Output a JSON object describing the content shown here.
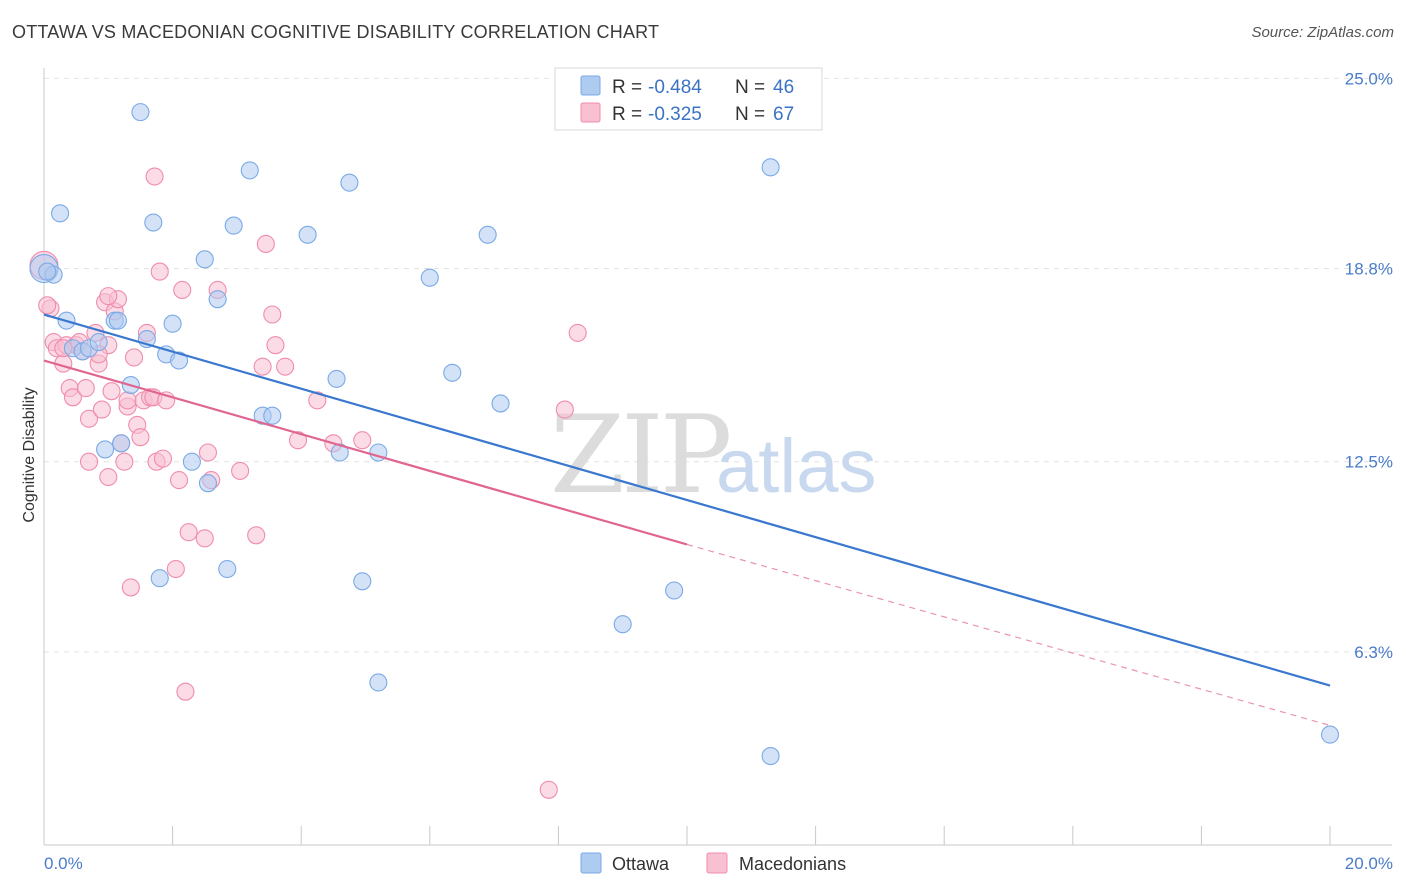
{
  "title": "OTTAWA VS MACEDONIAN COGNITIVE DISABILITY CORRELATION CHART",
  "source": "Source: ZipAtlas.com",
  "watermark": {
    "zip": "ZIP",
    "atlas": "atlas"
  },
  "legend": {
    "r_label": "R =",
    "n_label": "N =",
    "entries": [
      {
        "name": "Ottawa",
        "r": "-0.484",
        "n": "46",
        "color": "#7aaae6",
        "fill": "#aecbf0"
      },
      {
        "name": "Macedonians",
        "r": "-0.325",
        "n": "67",
        "color": "#f08cac",
        "fill": "#f8c0d1"
      }
    ]
  },
  "chart_data": {
    "type": "scatter",
    "title": "OTTAWA VS MACEDONIAN COGNITIVE DISABILITY CORRELATION CHART",
    "xlabel": "",
    "ylabel": "Cognitive Disability",
    "xlim": [
      0,
      20
    ],
    "ylim": [
      0,
      25.6
    ],
    "x_tick_labels": [
      "0.0%",
      "20.0%"
    ],
    "y_ticks": [
      {
        "value": 6.3,
        "label": "6.3%"
      },
      {
        "value": 12.5,
        "label": "12.5%"
      },
      {
        "value": 18.8,
        "label": "18.8%"
      },
      {
        "value": 25.0,
        "label": "25.0%"
      }
    ],
    "grid": true,
    "series": [
      {
        "name": "Ottawa",
        "color": "#3a78cf",
        "trend": {
          "x0": 0.0,
          "y0": 17.3,
          "x1": 20.0,
          "y1": 5.2
        },
        "points": [
          [
            0.0,
            18.8
          ],
          [
            0.15,
            18.6
          ],
          [
            0.25,
            20.6
          ],
          [
            0.35,
            17.1
          ],
          [
            0.45,
            16.2
          ],
          [
            0.6,
            16.1
          ],
          [
            0.7,
            16.2
          ],
          [
            0.85,
            16.4
          ],
          [
            0.95,
            12.9
          ],
          [
            1.1,
            17.1
          ],
          [
            1.2,
            13.1
          ],
          [
            1.35,
            15.0
          ],
          [
            1.5,
            23.9
          ],
          [
            1.6,
            16.5
          ],
          [
            1.7,
            20.3
          ],
          [
            1.8,
            8.7
          ],
          [
            1.9,
            16.0
          ],
          [
            2.0,
            17.0
          ],
          [
            2.1,
            15.8
          ],
          [
            2.3,
            12.5
          ],
          [
            2.5,
            19.1
          ],
          [
            2.55,
            11.8
          ],
          [
            2.7,
            17.8
          ],
          [
            2.85,
            9.0
          ],
          [
            2.95,
            20.2
          ],
          [
            3.2,
            22.0
          ],
          [
            3.4,
            14.0
          ],
          [
            3.55,
            14.0
          ],
          [
            4.1,
            19.9
          ],
          [
            4.55,
            15.2
          ],
          [
            4.6,
            12.8
          ],
          [
            4.75,
            21.6
          ],
          [
            4.95,
            8.6
          ],
          [
            5.2,
            5.3
          ],
          [
            5.2,
            12.8
          ],
          [
            6.0,
            18.5
          ],
          [
            6.35,
            15.4
          ],
          [
            6.9,
            19.9
          ],
          [
            7.1,
            14.4
          ],
          [
            9.0,
            7.2
          ],
          [
            9.8,
            8.3
          ],
          [
            11.3,
            2.9
          ],
          [
            11.3,
            22.1
          ],
          [
            20.0,
            3.6
          ],
          [
            0.05,
            18.7
          ],
          [
            1.15,
            17.1
          ]
        ]
      },
      {
        "name": "Macedonians",
        "color": "#e0668f",
        "trend": {
          "x0": 0.0,
          "y0": 15.8,
          "x1": 10.0,
          "y1": 9.8
        },
        "trend_dashed": {
          "x0": 10.0,
          "y0": 9.8,
          "x1": 20.0,
          "y1": 3.9
        },
        "points": [
          [
            0.0,
            18.9
          ],
          [
            0.1,
            17.5
          ],
          [
            0.15,
            16.4
          ],
          [
            0.2,
            16.2
          ],
          [
            0.3,
            15.7
          ],
          [
            0.35,
            16.3
          ],
          [
            0.4,
            14.9
          ],
          [
            0.45,
            14.6
          ],
          [
            0.5,
            16.3
          ],
          [
            0.55,
            16.4
          ],
          [
            0.6,
            16.1
          ],
          [
            0.65,
            14.9
          ],
          [
            0.7,
            12.5
          ],
          [
            0.7,
            13.9
          ],
          [
            0.8,
            16.7
          ],
          [
            0.85,
            15.7
          ],
          [
            0.9,
            14.2
          ],
          [
            0.95,
            17.7
          ],
          [
            1.0,
            16.3
          ],
          [
            1.0,
            12.0
          ],
          [
            1.05,
            14.8
          ],
          [
            1.1,
            17.4
          ],
          [
            1.15,
            17.8
          ],
          [
            1.2,
            13.1
          ],
          [
            1.25,
            12.5
          ],
          [
            1.3,
            14.3
          ],
          [
            1.3,
            14.5
          ],
          [
            1.35,
            8.4
          ],
          [
            1.4,
            15.9
          ],
          [
            1.45,
            13.7
          ],
          [
            1.5,
            13.3
          ],
          [
            1.55,
            14.5
          ],
          [
            1.6,
            16.7
          ],
          [
            1.65,
            14.6
          ],
          [
            1.7,
            14.6
          ],
          [
            1.72,
            21.8
          ],
          [
            1.75,
            12.5
          ],
          [
            1.8,
            18.7
          ],
          [
            1.85,
            12.6
          ],
          [
            1.9,
            14.5
          ],
          [
            2.05,
            9.0
          ],
          [
            2.1,
            11.9
          ],
          [
            2.15,
            18.1
          ],
          [
            2.2,
            5.0
          ],
          [
            2.25,
            10.2
          ],
          [
            2.5,
            10.0
          ],
          [
            2.55,
            12.8
          ],
          [
            2.6,
            11.9
          ],
          [
            2.7,
            18.1
          ],
          [
            3.05,
            12.2
          ],
          [
            3.3,
            10.1
          ],
          [
            3.4,
            15.6
          ],
          [
            3.45,
            19.6
          ],
          [
            3.55,
            17.3
          ],
          [
            3.6,
            16.3
          ],
          [
            3.75,
            15.6
          ],
          [
            3.95,
            13.2
          ],
          [
            4.25,
            14.5
          ],
          [
            4.5,
            13.1
          ],
          [
            4.95,
            13.2
          ],
          [
            7.85,
            1.8
          ],
          [
            8.1,
            14.2
          ],
          [
            8.3,
            16.7
          ],
          [
            0.05,
            17.6
          ],
          [
            0.3,
            16.2
          ],
          [
            1.0,
            17.9
          ],
          [
            0.85,
            16.0
          ]
        ]
      }
    ]
  }
}
